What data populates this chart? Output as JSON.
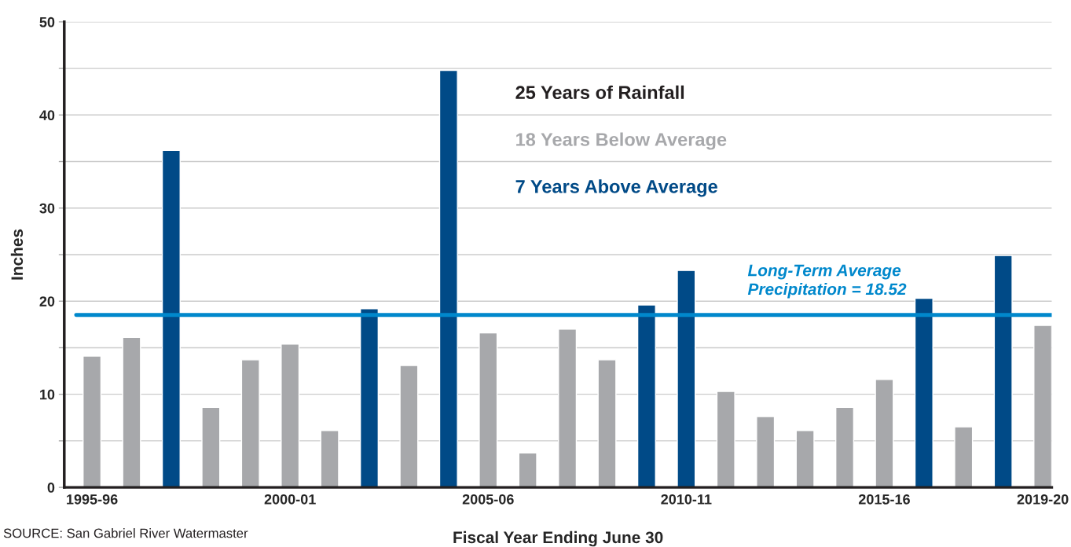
{
  "chart_data": {
    "type": "bar",
    "xlabel": "Fiscal Year Ending June 30",
    "ylabel": "Inches",
    "categories": [
      "1995-96",
      null,
      null,
      null,
      null,
      "2000-01",
      null,
      null,
      null,
      null,
      "2005-06",
      null,
      null,
      null,
      null,
      "2010-11",
      null,
      null,
      null,
      null,
      "2015-16",
      null,
      null,
      null,
      "2019-20"
    ],
    "values": [
      14.1,
      16.1,
      36.2,
      8.6,
      13.7,
      15.4,
      6.1,
      19.2,
      13.1,
      44.8,
      16.6,
      3.7,
      17.0,
      13.7,
      19.6,
      23.3,
      10.3,
      7.6,
      6.1,
      8.6,
      11.6,
      20.3,
      6.5,
      24.9,
      17.4
    ],
    "colors": [
      "#a7a8ab",
      "#a7a8ab",
      "#004a87",
      "#a7a8ab",
      "#a7a8ab",
      "#a7a8ab",
      "#a7a8ab",
      "#004a87",
      "#a7a8ab",
      "#004a87",
      "#a7a8ab",
      "#a7a8ab",
      "#a7a8ab",
      "#a7a8ab",
      "#004a87",
      "#004a87",
      "#a7a8ab",
      "#a7a8ab",
      "#a7a8ab",
      "#a7a8ab",
      "#a7a8ab",
      "#004a87",
      "#a7a8ab",
      "#004a87",
      "#a7a8ab"
    ],
    "ylim": [
      0,
      50
    ],
    "yticks": [
      0,
      {
        "value": 5,
        "label": null
      },
      10,
      {
        "value": 15,
        "label": null
      },
      20,
      {
        "value": 25,
        "label": null
      },
      30,
      {
        "value": 35,
        "label": null
      },
      40,
      {
        "value": 45,
        "label": null
      },
      50
    ],
    "grid": "y",
    "ref_lines": [
      {
        "axis": "y",
        "value": 18.52,
        "label": "Long-Term Average\nPrecipitation = 18.52",
        "color": "#0088cc"
      }
    ],
    "annotations": [
      "25 Years of Rainfall",
      "18 Years Below Average",
      "7 Years Above Average",
      "SOURCE: San Gabriel River Watermaster"
    ]
  }
}
